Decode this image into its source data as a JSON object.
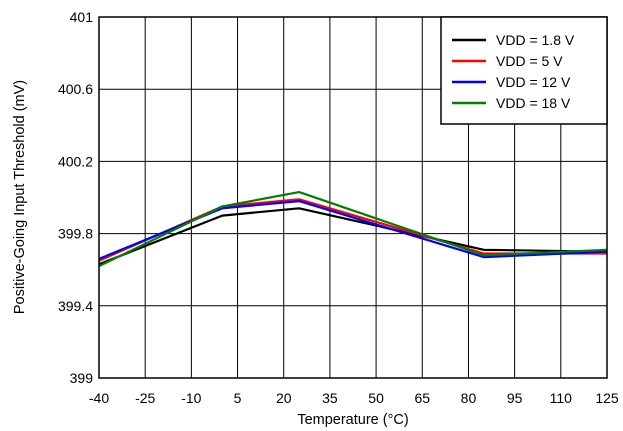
{
  "chart_data": {
    "type": "line",
    "xlabel": "Temperature (°C)",
    "ylabel": "Positive-Going Input Threshold (mV)",
    "xlim": [
      -40,
      125
    ],
    "ylim": [
      399,
      401
    ],
    "x_ticks": [
      "-40",
      "-25",
      "-10",
      "5",
      "20",
      "35",
      "50",
      "65",
      "80",
      "95",
      "110",
      "125"
    ],
    "y_ticks": [
      "399",
      "399.4",
      "399.8",
      "400.2",
      "400.6",
      "401"
    ],
    "grid": true,
    "legend_position": "top-right",
    "series": [
      {
        "name": "VDD = 1.8 V",
        "color": "#000000",
        "x": [
          -40,
          0,
          25,
          85,
          125
        ],
        "y": [
          399.63,
          399.9,
          399.94,
          399.71,
          399.7
        ]
      },
      {
        "name": "VDD = 5 V",
        "color": "#ff0000",
        "x": [
          -40,
          0,
          25,
          85,
          125
        ],
        "y": [
          399.65,
          399.95,
          399.99,
          399.69,
          399.69
        ]
      },
      {
        "name": "VDD = 12 V",
        "color": "#0000ff",
        "x": [
          -40,
          0,
          25,
          85,
          125
        ],
        "y": [
          399.66,
          399.94,
          399.98,
          399.67,
          399.7
        ]
      },
      {
        "name": "VDD = 18 V",
        "color": "#008000",
        "x": [
          -40,
          0,
          25,
          85,
          125
        ],
        "y": [
          399.62,
          399.95,
          400.03,
          399.68,
          399.71
        ]
      }
    ]
  }
}
